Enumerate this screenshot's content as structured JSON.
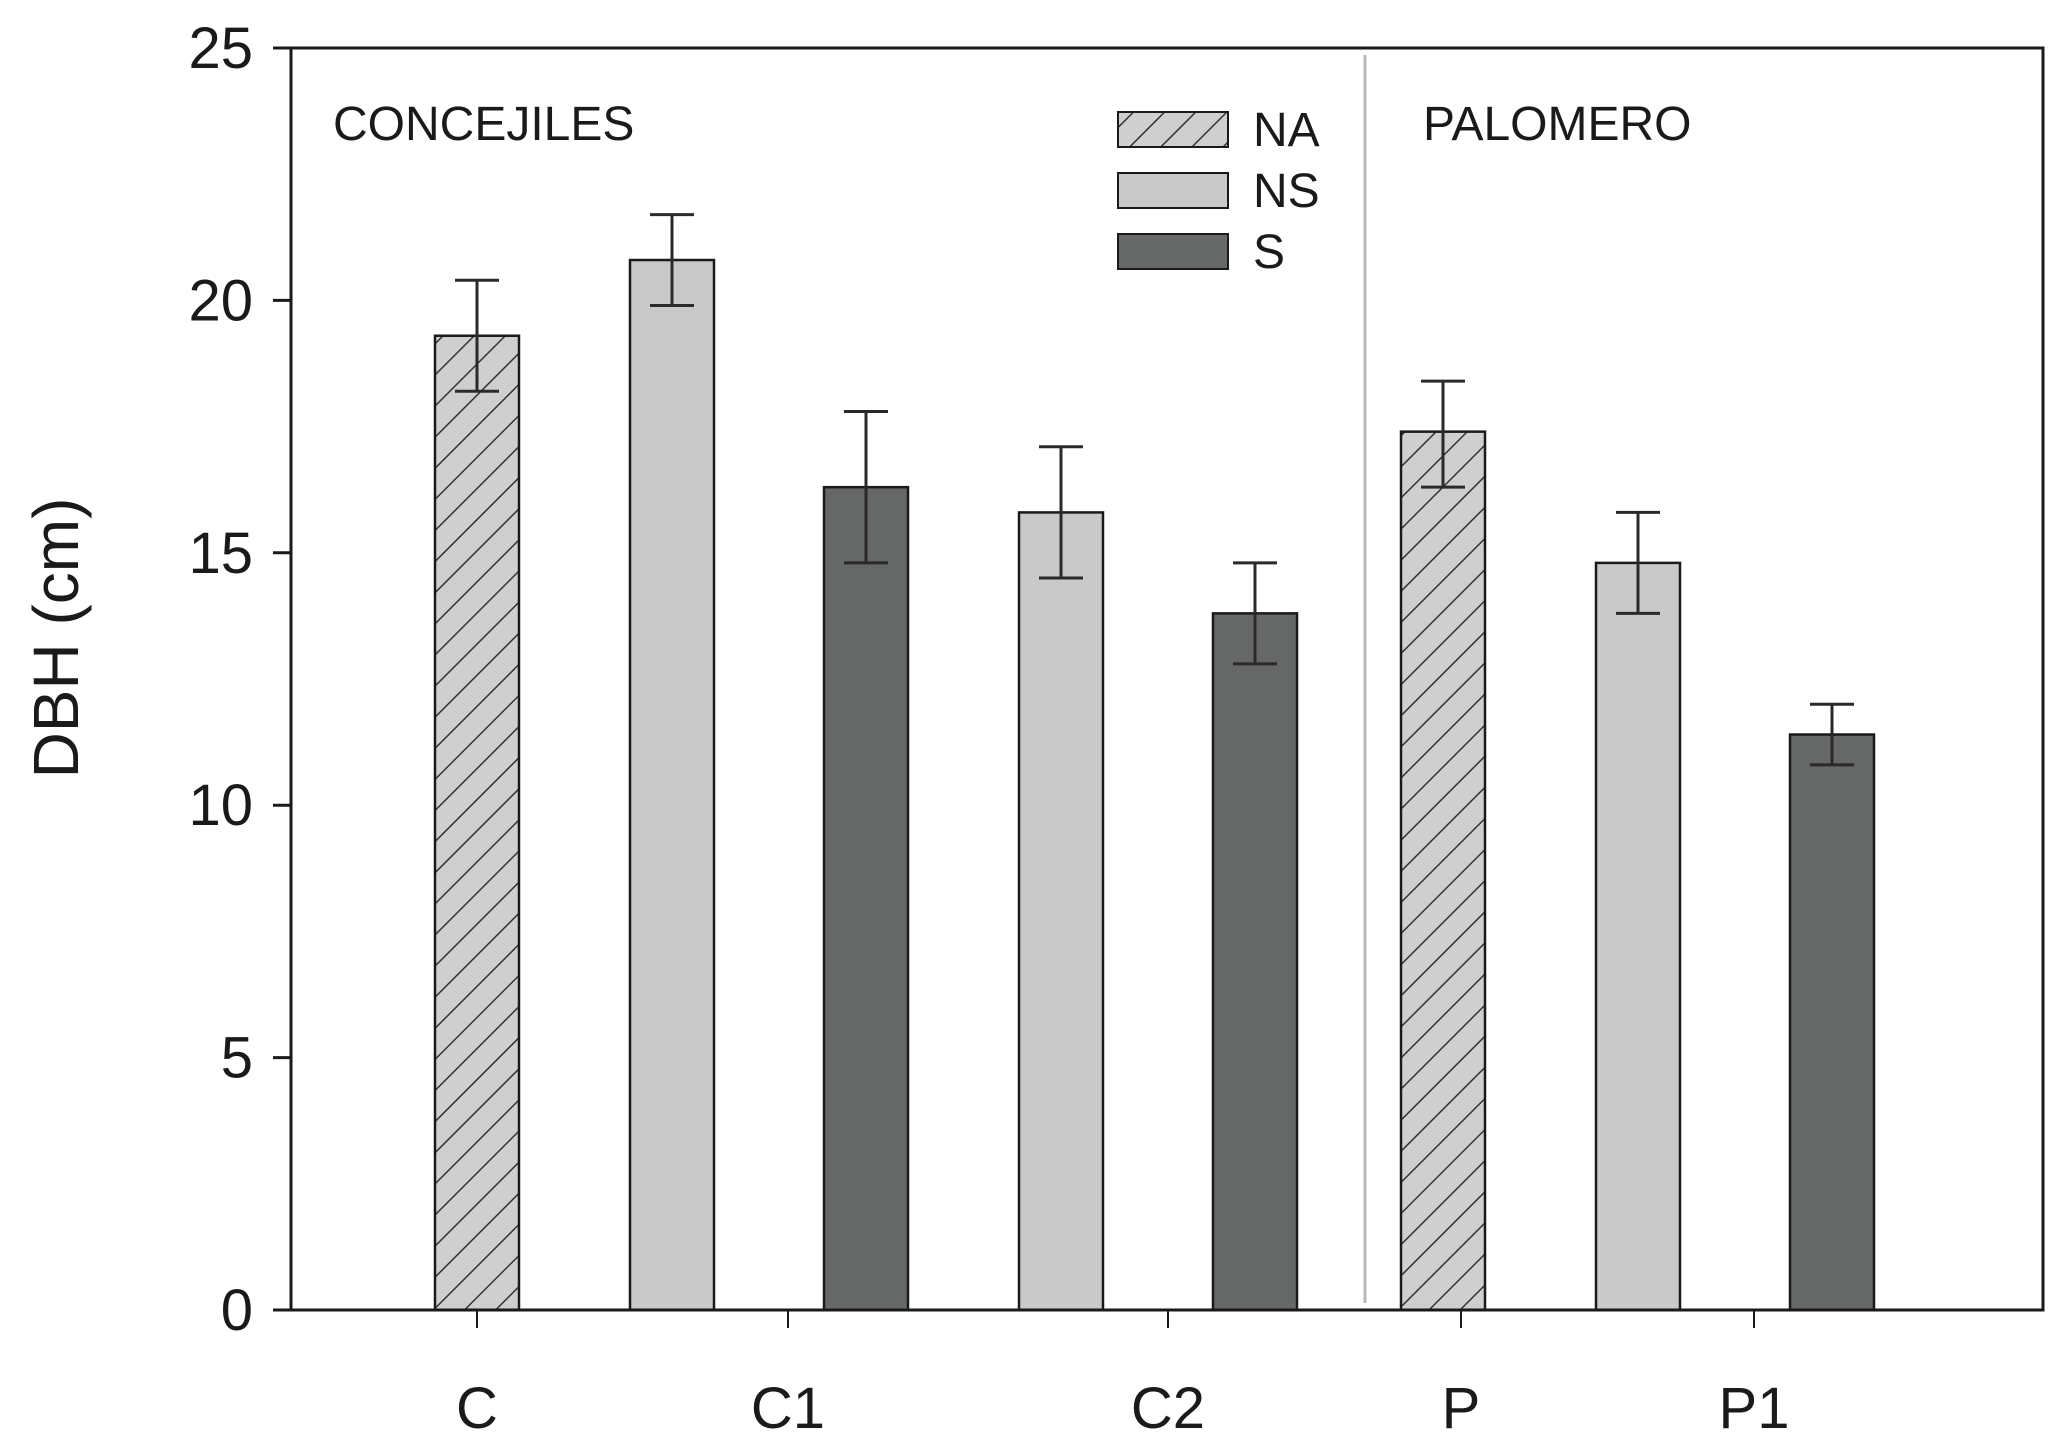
{
  "chart_data": {
    "type": "bar",
    "ylabel": "DBH (cm)",
    "xlabel": "",
    "ylim": [
      0,
      25
    ],
    "yticks": [
      0,
      5,
      10,
      15,
      20,
      25
    ],
    "grid": false,
    "legend_position": "top-center",
    "colors": {
      "NA": "#cfcfcf",
      "NS": "#c9c9c9",
      "S": "#666767",
      "hatch": "#333333",
      "axis": "#1a1a1a",
      "divider": "#b9b9b9"
    },
    "series": [
      {
        "name": "NA",
        "pattern": "hatch"
      },
      {
        "name": "NS",
        "pattern": "solid-light"
      },
      {
        "name": "S",
        "pattern": "solid-dark"
      }
    ],
    "categories": [
      "C",
      "C1",
      "C2",
      "P",
      "P1"
    ],
    "sites": [
      {
        "name": "CONCEJILES",
        "categories": [
          "C",
          "C1",
          "C2"
        ]
      },
      {
        "name": "PALOMERO",
        "categories": [
          "P",
          "P1"
        ]
      }
    ],
    "bars": [
      {
        "series": "NA",
        "value": 19.3,
        "error_low": 18.2,
        "error_high": 20.4
      },
      {
        "series": "NS",
        "value": 20.8,
        "error_low": 19.9,
        "error_high": 21.7
      },
      {
        "series": "S",
        "value": 16.3,
        "error_low": 14.8,
        "error_high": 17.8
      },
      {
        "series": "NS",
        "value": 15.8,
        "error_low": 14.5,
        "error_high": 17.1
      },
      {
        "series": "S",
        "value": 13.8,
        "error_low": 12.8,
        "error_high": 14.8
      },
      {
        "series": "NA",
        "value": 17.4,
        "error_low": 16.3,
        "error_high": 18.4
      },
      {
        "series": "NS",
        "value": 14.8,
        "error_low": 13.8,
        "error_high": 15.8
      },
      {
        "series": "S",
        "value": 11.4,
        "error_low": 10.8,
        "error_high": 12.0
      }
    ]
  }
}
